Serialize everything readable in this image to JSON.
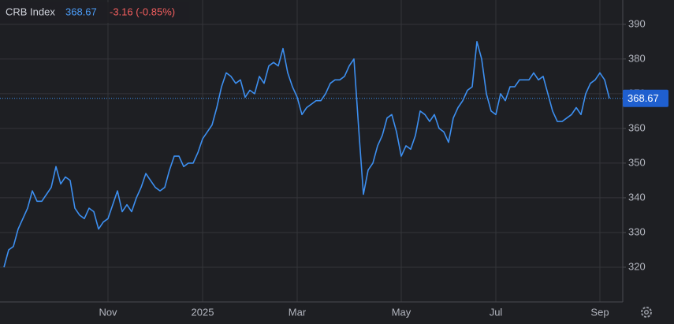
{
  "chart_data": {
    "type": "line",
    "title": "CRB Index",
    "change_label": "-3.16 (-0.85%)",
    "color": "#3d8ff0",
    "grid": true,
    "categories": [
      null,
      null,
      null,
      null,
      null,
      null,
      null,
      null,
      null,
      null,
      null,
      null,
      null,
      null,
      null,
      null,
      null,
      null,
      null,
      null,
      null,
      null,
      "Nov",
      null,
      null,
      null,
      null,
      null,
      null,
      null,
      null,
      null,
      null,
      null,
      null,
      null,
      null,
      null,
      null,
      null,
      null,
      null,
      "2025",
      null,
      null,
      null,
      null,
      null,
      null,
      null,
      null,
      null,
      null,
      null,
      null,
      null,
      null,
      null,
      null,
      null,
      null,
      null,
      "Mar",
      null,
      null,
      null,
      null,
      null,
      null,
      null,
      null,
      null,
      null,
      null,
      null,
      null,
      null,
      null,
      null,
      null,
      null,
      null,
      null,
      null,
      "May",
      null,
      null,
      null,
      null,
      null,
      null,
      null,
      null,
      null,
      null,
      null,
      null,
      null,
      null,
      null,
      null,
      null,
      null,
      null,
      "Jul",
      null,
      null,
      null,
      null,
      null,
      null,
      null,
      null,
      null,
      null,
      null,
      null,
      null,
      null,
      null,
      null,
      null,
      null,
      null,
      null,
      null,
      "Sep",
      null,
      null
    ],
    "values": [
      320,
      325,
      326,
      331,
      334,
      337,
      342,
      339,
      339,
      341,
      343,
      349,
      344,
      346,
      345,
      337,
      335,
      334,
      337,
      336,
      331,
      333,
      334,
      338,
      342,
      336,
      338,
      336,
      340,
      343,
      347,
      345,
      343,
      342,
      343,
      348,
      352,
      352,
      349,
      350,
      350,
      353,
      357,
      359,
      361,
      366,
      372,
      376,
      375,
      373,
      374,
      369,
      371,
      370,
      375,
      373,
      378,
      379,
      378,
      383,
      376,
      372,
      369,
      364,
      366,
      367,
      368,
      368,
      370,
      373,
      374,
      374,
      375,
      378,
      380,
      360,
      341,
      348,
      350,
      355,
      358,
      363,
      364,
      359,
      352,
      355,
      354,
      358,
      365,
      364,
      362,
      364,
      360,
      359,
      356,
      363,
      366,
      368,
      371,
      372,
      385,
      380,
      370,
      365,
      364,
      370,
      368,
      372,
      372,
      374,
      374,
      374,
      376,
      374,
      375,
      370,
      365,
      362,
      362,
      363,
      364,
      366,
      364,
      370,
      373,
      374,
      376,
      374,
      368.67
    ],
    "ylim": [
      310,
      397
    ],
    "yticks": [
      320,
      330,
      340,
      350,
      360,
      370,
      380,
      390
    ]
  }
}
